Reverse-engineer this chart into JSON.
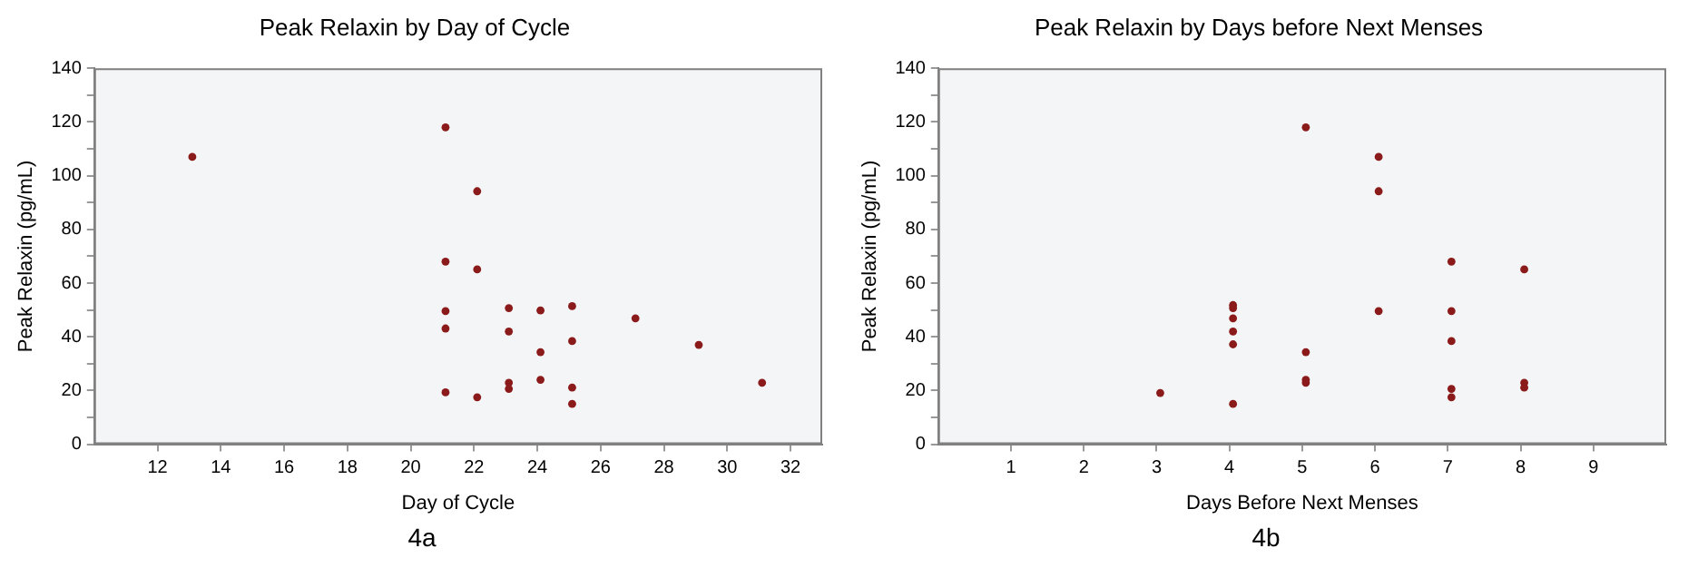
{
  "chart_data": [
    {
      "type": "scatter",
      "title": "Peak Relaxin by Day of Cycle",
      "xlabel": "Day of Cycle",
      "ylabel": "Peak Relaxin (pg/mL)",
      "annotations": [
        "4a"
      ],
      "x": [
        13.1,
        21.1,
        21.1,
        21.1,
        21.1,
        21.1,
        22.1,
        22.1,
        22.1,
        23.1,
        23.1,
        23.1,
        23.1,
        24.1,
        24.1,
        24.1,
        25.1,
        25.1,
        25.1,
        25.1,
        27.1,
        29.1,
        31.1
      ],
      "values": [
        107,
        118,
        68,
        49.6,
        43.1,
        19.3,
        94.2,
        65.1,
        17.5,
        50.7,
        42,
        22.9,
        20.6,
        49.8,
        34.3,
        24,
        51.4,
        38.4,
        21.1,
        15,
        46.9,
        37,
        22.9
      ],
      "color": "#8b1a1a",
      "marker": "circle",
      "grid": false,
      "legend": false,
      "xlim": [
        10,
        33
      ],
      "xticks": [
        12,
        14,
        16,
        18,
        20,
        22,
        24,
        26,
        28,
        30,
        32
      ],
      "ylim": [
        0,
        140
      ],
      "yticks": [
        0,
        {
          "value": 10,
          "label": null
        },
        20,
        {
          "value": 30,
          "label": null
        },
        40,
        {
          "value": 50,
          "label": null
        },
        60,
        {
          "value": 70,
          "label": null
        },
        80,
        {
          "value": 90,
          "label": null
        },
        100,
        {
          "value": 110,
          "label": null
        },
        120,
        {
          "value": 130,
          "label": null
        },
        140
      ]
    },
    {
      "type": "scatter",
      "title": "Peak Relaxin by Days before Next Menses",
      "xlabel": "Days Before Next Menses",
      "ylabel": "Peak Relaxin (pg/mL)",
      "annotations": [
        "4b"
      ],
      "x": [
        3.05,
        4.05,
        4.05,
        4.05,
        4.05,
        4.05,
        4.05,
        5.05,
        5.05,
        5.05,
        5.05,
        6.05,
        6.05,
        6.05,
        7.05,
        7.05,
        7.05,
        7.05,
        7.05,
        8.05,
        8.05,
        8.05
      ],
      "values": [
        19.1,
        51.8,
        50.7,
        46.9,
        42,
        37.2,
        15,
        118,
        34.3,
        24,
        22.9,
        107,
        94.2,
        49.6,
        68,
        49.6,
        38.4,
        20.6,
        17.5,
        65.1,
        22.9,
        21.1
      ],
      "color": "#8b1a1a",
      "marker": "circle",
      "grid": false,
      "legend": false,
      "xlim": [
        0,
        10
      ],
      "xticks": [
        1,
        2,
        3,
        4,
        5,
        6,
        7,
        8,
        9
      ],
      "ylim": [
        0,
        140
      ],
      "yticks": [
        0,
        {
          "value": 10,
          "label": null
        },
        20,
        {
          "value": 30,
          "label": null
        },
        40,
        {
          "value": 50,
          "label": null
        },
        60,
        {
          "value": 70,
          "label": null
        },
        80,
        {
          "value": 90,
          "label": null
        },
        100,
        {
          "value": 110,
          "label": null
        },
        120,
        {
          "value": 130,
          "label": null
        },
        140
      ]
    }
  ]
}
